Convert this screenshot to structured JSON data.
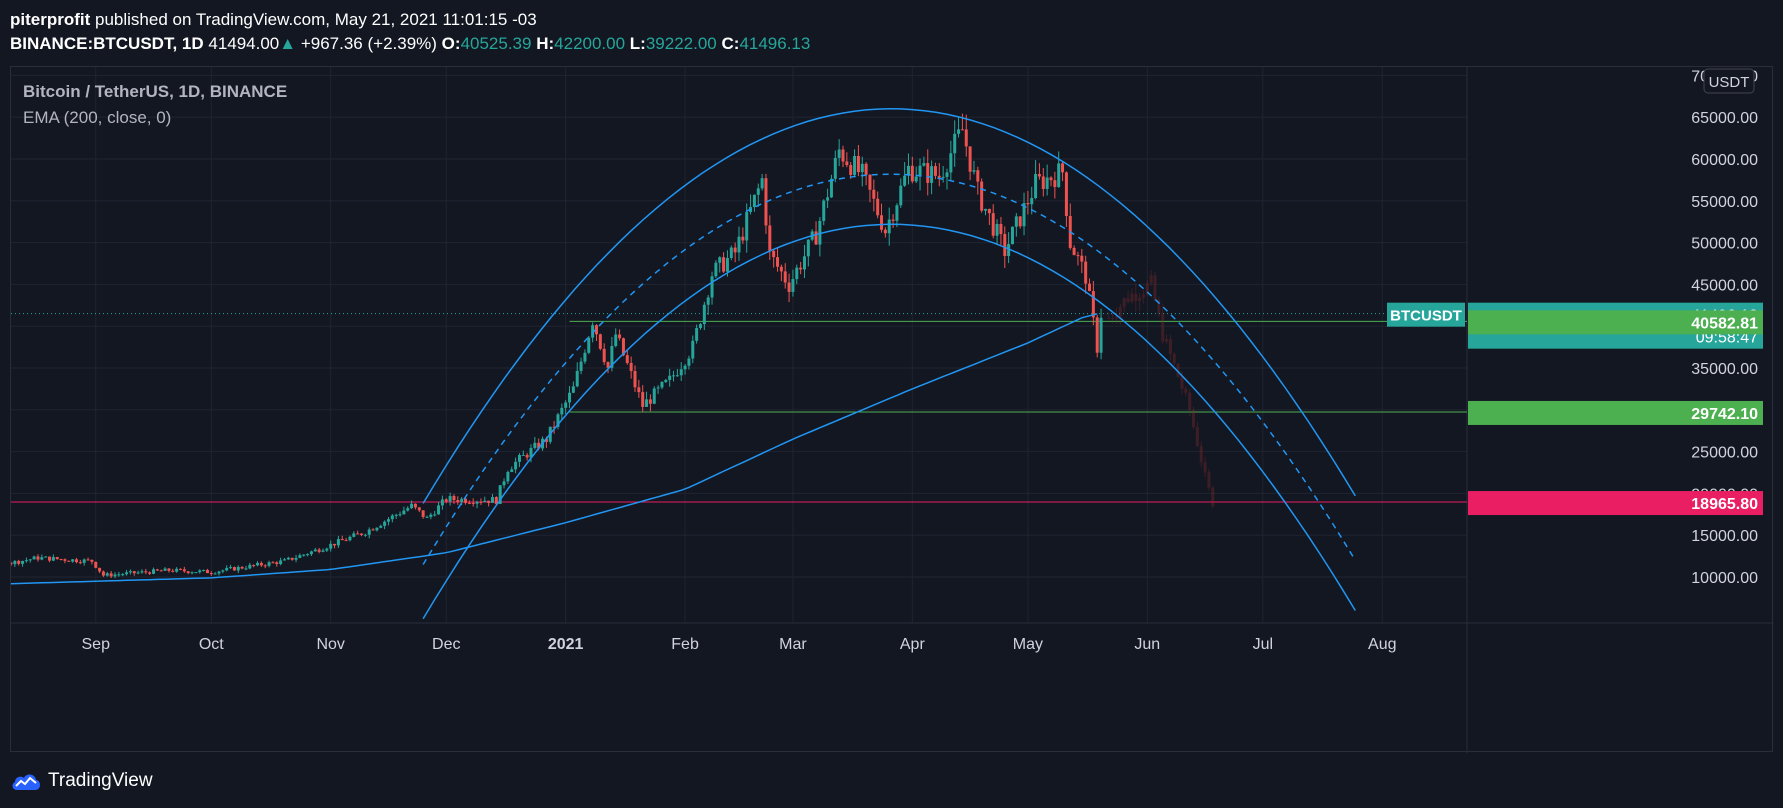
{
  "header": {
    "author": "piterprofit",
    "published": "published on TradingView.com, May 21, 2021 11:01:15 -03",
    "symbol": "BINANCE:BTCUSDT, 1D",
    "last": "41494.00",
    "change_arrow": "▲",
    "change": "+967.36 (+2.39%)",
    "o_label": "O:",
    "o_value": "40525.39",
    "h_label": "H:",
    "h_value": "42200.00",
    "l_label": "L:",
    "l_value": "39222.00",
    "c_label": "C:",
    "c_value": "41496.13"
  },
  "legend": {
    "title": "Bitcoin / TetherUS, 1D, BINANCE",
    "indicator": "EMA (200, close, 0)"
  },
  "footer": {
    "brand": "TradingView"
  },
  "colors": {
    "bg": "#131722",
    "grid": "#1f2430",
    "up": "#26a69a",
    "down": "#ef5350",
    "ema": "#2196f3",
    "arc": "#2196f3",
    "support_green": "#4caf50",
    "pink": "#e91e63",
    "text": "#b2b5be",
    "axis_text": "#d1d4dc"
  },
  "chart_data": {
    "type": "candlestick",
    "title": "Bitcoin / TetherUS, 1D, BINANCE",
    "currency": "USDT",
    "y_ticks": [
      10000,
      15000,
      20000,
      25000,
      30000,
      35000,
      40000,
      45000,
      50000,
      55000,
      60000,
      65000,
      70000
    ],
    "y_tick_labels": [
      "10000.00",
      "15000.00",
      "20000.00",
      "25000.00",
      "30000.00",
      "35000.00",
      "40000.00",
      "45000.00",
      "50000.00",
      "55000.00",
      "60000.00",
      "65000.00",
      "70000.00"
    ],
    "ylim": [
      4500,
      71000
    ],
    "x_labels": [
      "Sep",
      "Oct",
      "Nov",
      "Dec",
      "2021",
      "Feb",
      "Mar",
      "Apr",
      "May",
      "Jun",
      "Jul",
      "Aug"
    ],
    "x_label_dates": [
      "2020-09-01",
      "2020-10-01",
      "2020-11-01",
      "2020-12-01",
      "2021-01-01",
      "2021-02-01",
      "2021-03-01",
      "2021-04-01",
      "2021-05-01",
      "2021-06-01",
      "2021-07-01",
      "2021-08-01"
    ],
    "xlim": [
      "2020-08-10",
      "2021-08-23"
    ],
    "grid": true,
    "price_tags": [
      {
        "label": "BTCUSDT",
        "value": "41496.13",
        "price": 41496.13,
        "sub": "09:58:47",
        "color": "#26a69a"
      },
      {
        "value": "40582.81",
        "price": 40582.81,
        "color": "#4caf50"
      },
      {
        "value": "29742.10",
        "price": 29742.1,
        "color": "#4caf50"
      },
      {
        "value": "18965.80",
        "price": 18965.8,
        "color": "#e91e63"
      }
    ],
    "support_lines": [
      {
        "price": 40582.81,
        "from": "2021-01-02",
        "color": "#4caf50"
      },
      {
        "price": 29742.1,
        "from": "2021-01-02",
        "color": "#4caf50"
      },
      {
        "price": 18965.8,
        "from": "2020-08-10",
        "color": "#e91e63"
      }
    ],
    "current_price": 41496.13,
    "ohlc_keypoints": [
      [
        "2020-08-10",
        11700
      ],
      [
        "2020-08-17",
        12300
      ],
      [
        "2020-08-31",
        11900
      ],
      [
        "2020-09-03",
        10200
      ],
      [
        "2020-09-20",
        10800
      ],
      [
        "2020-10-01",
        10600
      ],
      [
        "2020-10-20",
        11900
      ],
      [
        "2020-10-30",
        13500
      ],
      [
        "2020-11-10",
        15400
      ],
      [
        "2020-11-22",
        18500
      ],
      [
        "2020-11-26",
        17000
      ],
      [
        "2020-12-01",
        19300
      ],
      [
        "2020-12-14",
        19200
      ],
      [
        "2020-12-17",
        23000
      ],
      [
        "2020-12-27",
        26500
      ],
      [
        "2021-01-03",
        32500
      ],
      [
        "2021-01-08",
        40800
      ],
      [
        "2021-01-12",
        35000
      ],
      [
        "2021-01-14",
        39000
      ],
      [
        "2021-01-21",
        30500
      ],
      [
        "2021-01-28",
        33500
      ],
      [
        "2021-02-03",
        37500
      ],
      [
        "2021-02-08",
        46300
      ],
      [
        "2021-02-14",
        48800
      ],
      [
        "2021-02-21",
        57500
      ],
      [
        "2021-02-23",
        48500
      ],
      [
        "2021-02-28",
        45000
      ],
      [
        "2021-03-07",
        51000
      ],
      [
        "2021-03-13",
        61000
      ],
      [
        "2021-03-19",
        58000
      ],
      [
        "2021-03-25",
        51500
      ],
      [
        "2021-03-31",
        58800
      ],
      [
        "2021-04-08",
        58000
      ],
      [
        "2021-04-14",
        63500
      ],
      [
        "2021-04-18",
        56000
      ],
      [
        "2021-04-25",
        49000
      ],
      [
        "2021-05-03",
        57000
      ],
      [
        "2021-05-10",
        58500
      ],
      [
        "2021-05-12",
        50000
      ],
      [
        "2021-05-16",
        46000
      ],
      [
        "2021-05-19",
        37500
      ],
      [
        "2021-05-20",
        41496
      ]
    ],
    "ema200_keypoints": [
      [
        "2020-08-10",
        9200
      ],
      [
        "2020-10-01",
        9900
      ],
      [
        "2020-11-01",
        10900
      ],
      [
        "2020-12-01",
        12900
      ],
      [
        "2021-01-01",
        16500
      ],
      [
        "2021-02-01",
        20500
      ],
      [
        "2021-03-01",
        26500
      ],
      [
        "2021-04-01",
        32500
      ],
      [
        "2021-05-01",
        38000
      ],
      [
        "2021-05-15",
        41000
      ],
      [
        "2021-05-20",
        41600
      ]
    ],
    "arc_outer": [
      [
        "2020-11-25",
        18800
      ],
      [
        "2021-04-15",
        64800
      ],
      [
        "2021-07-25",
        19700
      ]
    ],
    "arc_inner": [
      [
        "2020-11-25",
        5000
      ],
      [
        "2021-04-08",
        51700
      ],
      [
        "2021-07-25",
        6000
      ]
    ],
    "arc_dashed": [
      [
        "2020-11-25",
        11500
      ],
      [
        "2021-04-10",
        57500
      ],
      [
        "2021-07-25",
        12000
      ]
    ],
    "ghost_projection_keypoints": [
      [
        "2021-05-22",
        41000
      ],
      [
        "2021-05-27",
        43500
      ],
      [
        "2021-06-02",
        45000
      ],
      [
        "2021-06-05",
        39000
      ],
      [
        "2021-06-09",
        34000
      ],
      [
        "2021-06-12",
        30000
      ],
      [
        "2021-06-16",
        22000
      ],
      [
        "2021-06-18",
        18900
      ]
    ]
  }
}
